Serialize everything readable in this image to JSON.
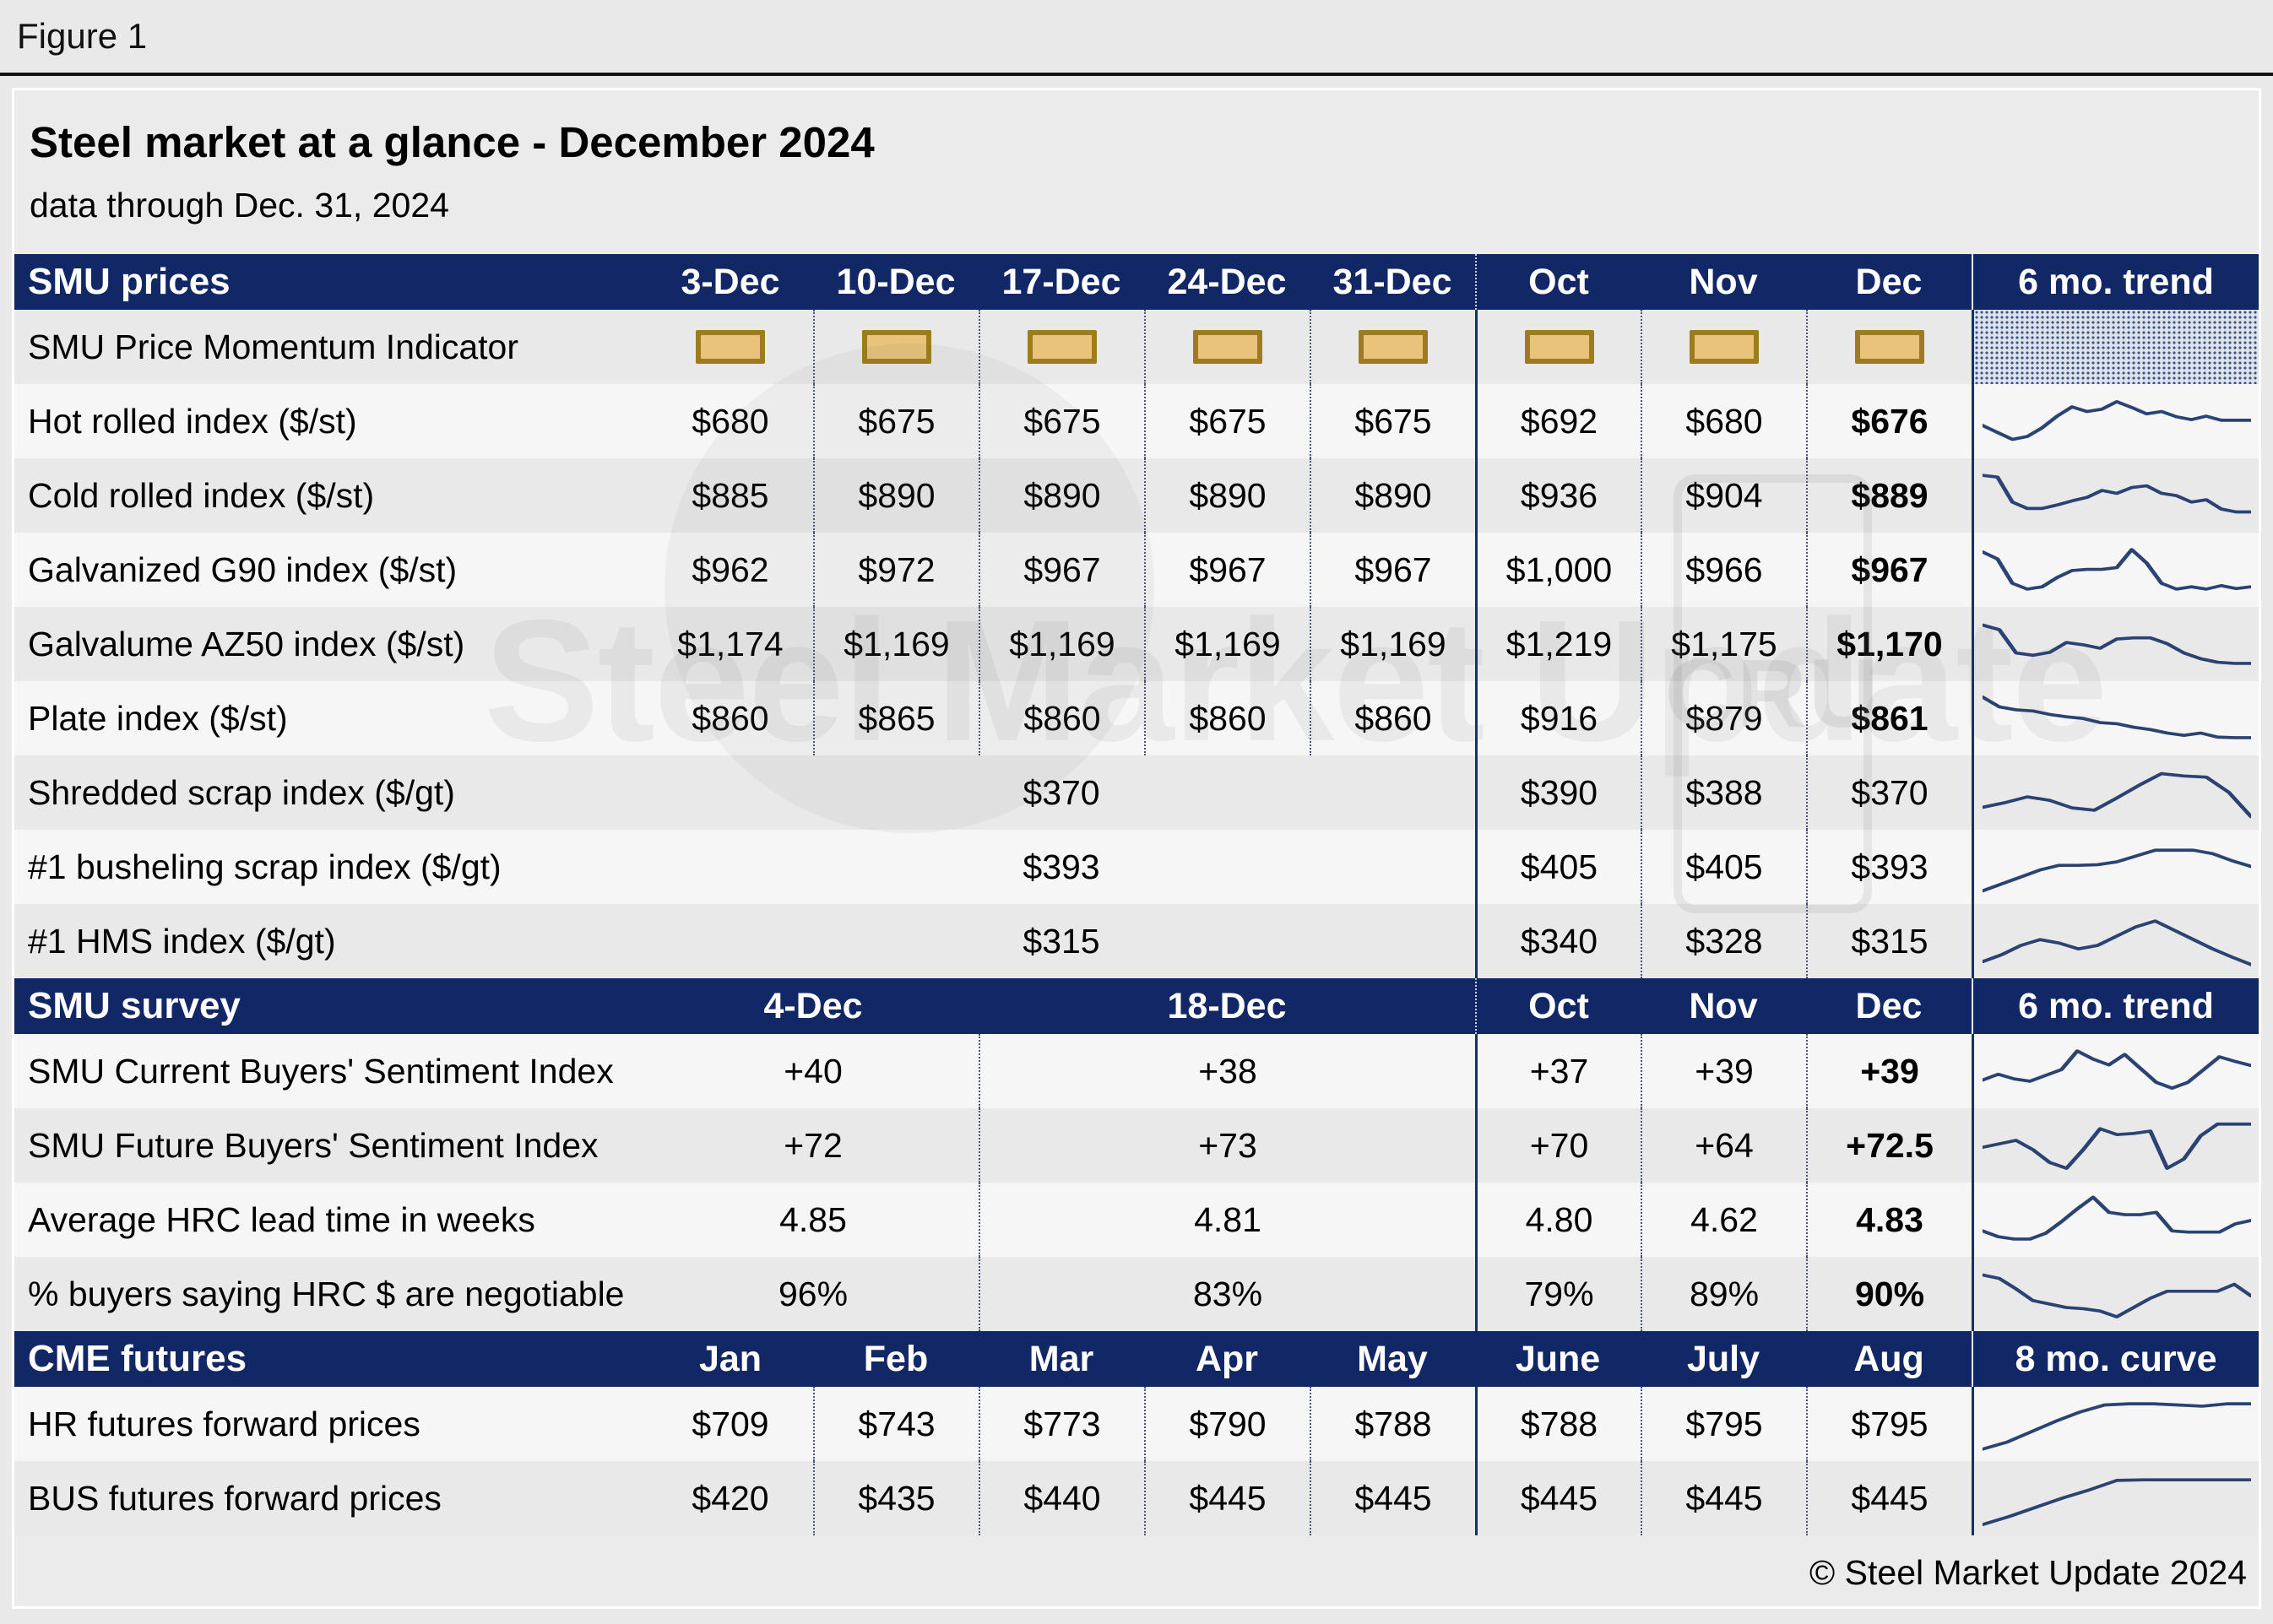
{
  "figure_label": "Figure 1",
  "title": "Steel market at a glance - December 2024",
  "subtitle": "data through Dec. 31, 2024",
  "footer": "© Steel Market Update 2024",
  "watermark": {
    "text": "Steel Market Update",
    "cru": "CRU"
  },
  "colors": {
    "header_navy": "#122765",
    "solid_rule_navy": "#16306e",
    "sparkline": "#2a4372",
    "momentum_box_fill": "#e9c27c",
    "momentum_box_border": "#9c7c1e",
    "row_light": "#f6f6f6",
    "row_dark": "#e9e9e9",
    "page_background": "#e9e9e9"
  },
  "chart_data": {
    "type": "table",
    "title": "Steel market at a glance - December 2024",
    "subtitle": "data through Dec. 31, 2024",
    "sections": [
      {
        "id": "prices",
        "label": "SMU prices",
        "columns": [
          {
            "t": "3-Dec"
          },
          {
            "t": "10-Dec"
          },
          {
            "t": "17-Dec"
          },
          {
            "t": "24-Dec"
          },
          {
            "t": "31-Dec"
          },
          {
            "t": "Oct",
            "cls": "wsep"
          },
          {
            "t": "Nov"
          },
          {
            "t": "Dec"
          }
        ],
        "trend_label": "6 mo. trend",
        "bold_last": true,
        "rows": [
          {
            "label": "SMU Price Momentum Indicator",
            "type": "momentum"
          },
          {
            "label": "Hot rolled index ($/st)",
            "type": "full",
            "values": [
              "$680",
              "$675",
              "$675",
              "$675",
              "$675",
              "$692",
              "$680",
              "$676"
            ],
            "spark": "hot_rolled"
          },
          {
            "label": "Cold rolled index ($/st)",
            "type": "full",
            "values": [
              "$885",
              "$890",
              "$890",
              "$890",
              "$890",
              "$936",
              "$904",
              "$889"
            ],
            "spark": "cold_rolled"
          },
          {
            "label": "Galvanized G90 index ($/st)",
            "type": "full",
            "values": [
              "$962",
              "$972",
              "$967",
              "$967",
              "$967",
              "$1,000",
              "$966",
              "$967"
            ],
            "spark": "galvanized"
          },
          {
            "label": "Galvalume AZ50 index ($/st)",
            "type": "full",
            "values": [
              "$1,174",
              "$1,169",
              "$1,169",
              "$1,169",
              "$1,169",
              "$1,219",
              "$1,175",
              "$1,170"
            ],
            "spark": "galvalume"
          },
          {
            "label": "Plate index ($/st)",
            "type": "full",
            "values": [
              "$860",
              "$865",
              "$860",
              "$860",
              "$860",
              "$916",
              "$879",
              "$861"
            ],
            "spark": "plate"
          },
          {
            "label": "Shredded scrap index ($/gt)",
            "type": "scrap",
            "week_value": "$370",
            "monthly": [
              "$390",
              "$388",
              "$370"
            ],
            "spark": "shredded"
          },
          {
            "label": "#1 busheling scrap index ($/gt)",
            "type": "scrap",
            "week_value": "$393",
            "monthly": [
              "$405",
              "$405",
              "$393"
            ],
            "spark": "busheling"
          },
          {
            "label": "#1 HMS index ($/gt)",
            "type": "scrap",
            "week_value": "$315",
            "monthly": [
              "$340",
              "$328",
              "$315"
            ],
            "spark": "hms"
          }
        ]
      },
      {
        "id": "survey",
        "label": "SMU survey",
        "columns": [
          {
            "t": "4-Dec",
            "span": 2
          },
          {
            "t": "18-Dec",
            "span": 3
          },
          {
            "t": "Oct",
            "cls": "wsep"
          },
          {
            "t": "Nov"
          },
          {
            "t": "Dec"
          }
        ],
        "trend_label": "6 mo. trend",
        "bold_last": true,
        "rows": [
          {
            "label": "SMU Current Buyers' Sentiment Index",
            "type": "survey",
            "values": [
              "+40",
              "+38",
              "+37",
              "+39",
              "+39"
            ],
            "spark": "current_sentiment"
          },
          {
            "label": "SMU Future Buyers' Sentiment Index",
            "type": "survey",
            "values": [
              "+72",
              "+73",
              "+70",
              "+64",
              "+72.5"
            ],
            "spark": "future_sentiment"
          },
          {
            "label": "Average HRC lead time in weeks",
            "type": "survey",
            "values": [
              "4.85",
              "4.81",
              "4.80",
              "4.62",
              "4.83"
            ],
            "spark": "hrc_lead_time"
          },
          {
            "label": "% buyers saying HRC $ are negotiable",
            "type": "survey",
            "values": [
              "96%",
              "83%",
              "79%",
              "89%",
              "90%"
            ],
            "spark": "pct_negotiable"
          }
        ]
      },
      {
        "id": "futures",
        "label": "CME futures",
        "columns": [
          {
            "t": "Jan"
          },
          {
            "t": "Feb"
          },
          {
            "t": "Mar"
          },
          {
            "t": "Apr"
          },
          {
            "t": "May"
          },
          {
            "t": "June"
          },
          {
            "t": "July"
          },
          {
            "t": "Aug"
          }
        ],
        "trend_label": "8 mo. curve",
        "bold_last": false,
        "rows": [
          {
            "label": "HR futures forward prices",
            "type": "full",
            "values": [
              "$709",
              "$743",
              "$773",
              "$790",
              "$788",
              "$788",
              "$795",
              "$795"
            ],
            "spark": "hr_futures"
          },
          {
            "label": "BUS futures forward prices",
            "type": "full",
            "values": [
              "$420",
              "$435",
              "$440",
              "$445",
              "$445",
              "$445",
              "$445",
              "$445"
            ],
            "spark": "bus_futures"
          }
        ]
      }
    ],
    "sparklines": {
      "hot_rolled": [
        46,
        34,
        22,
        27,
        42,
        62,
        78,
        70,
        74,
        87,
        77,
        66,
        70,
        61,
        56,
        62,
        55,
        55,
        55
      ],
      "cold_rolled": [
        88,
        85,
        42,
        31,
        31,
        37,
        44,
        50,
        62,
        57,
        67,
        70,
        57,
        53,
        42,
        46,
        30,
        25,
        25
      ],
      "galvanized": [
        84,
        72,
        30,
        20,
        24,
        40,
        52,
        54,
        54,
        57,
        88,
        65,
        30,
        20,
        24,
        20,
        26,
        21,
        24
      ],
      "galvalume": [
        86,
        78,
        38,
        34,
        39,
        56,
        52,
        46,
        62,
        64,
        64,
        54,
        38,
        28,
        22,
        20,
        20
      ],
      "plate": [
        90,
        73,
        68,
        66,
        60,
        56,
        53,
        46,
        44,
        38,
        34,
        28,
        24,
        28,
        21,
        20,
        20
      ],
      "shredded": [
        28,
        36,
        46,
        40,
        27,
        23,
        44,
        66,
        86,
        82,
        80,
        54,
        12
      ],
      "busheling": [
        12,
        24,
        36,
        48,
        56,
        56,
        57,
        62,
        72,
        82,
        82,
        82,
        76,
        64,
        54
      ],
      "hms": [
        18,
        30,
        46,
        56,
        50,
        40,
        46,
        62,
        78,
        88,
        72,
        56,
        40,
        26,
        13
      ],
      "current_sentiment": [
        38,
        48,
        40,
        36,
        46,
        56,
        88,
        74,
        64,
        82,
        58,
        34,
        24,
        34,
        56,
        78,
        70,
        63
      ],
      "future_sentiment": [
        50,
        56,
        62,
        46,
        24,
        14,
        46,
        82,
        72,
        74,
        78,
        14,
        30,
        70,
        90,
        90,
        90
      ],
      "hrc_lead_time": [
        34,
        24,
        20,
        20,
        30,
        50,
        72,
        92,
        66,
        62,
        62,
        66,
        34,
        32,
        32,
        32,
        46,
        52
      ],
      "pct_negotiable": [
        86,
        80,
        62,
        42,
        36,
        30,
        28,
        24,
        14,
        30,
        46,
        58,
        58,
        58,
        58,
        70,
        50
      ],
      "hr_futures": [
        10,
        22,
        40,
        58,
        74,
        86,
        88,
        88,
        86,
        84,
        88,
        88
      ],
      "bus_futures": [
        8,
        22,
        38,
        54,
        68,
        84,
        85,
        85,
        85,
        85,
        85
      ]
    }
  }
}
